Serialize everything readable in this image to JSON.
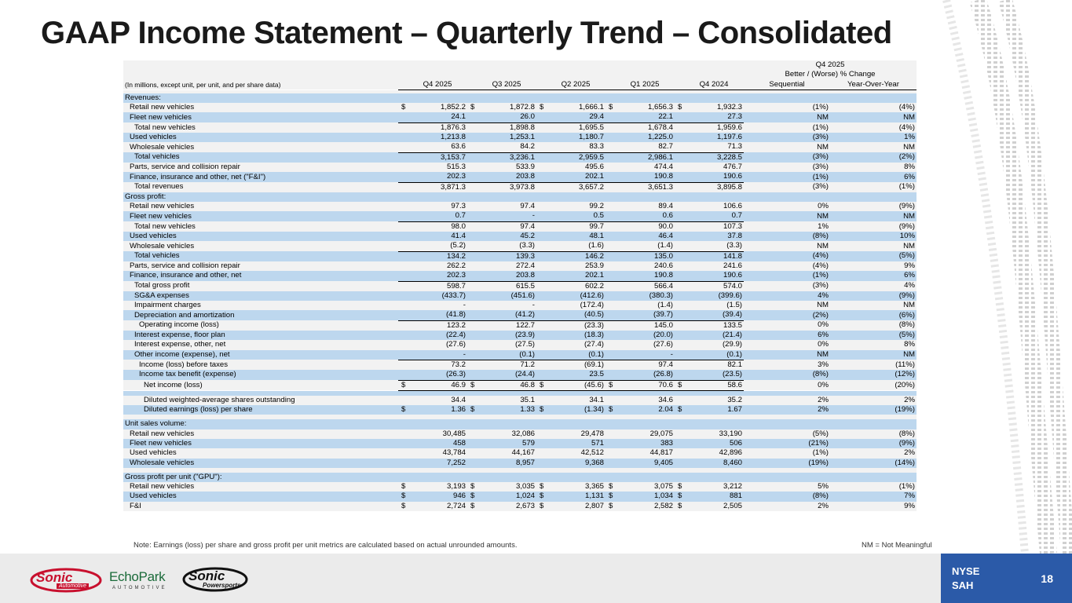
{
  "title": "GAAP Income Statement – Quarterly Trend – Consolidated",
  "header": {
    "note": "(In millions, except unit, per unit, and per share data)",
    "periods": [
      "Q4 2025",
      "Q3 2025",
      "Q2 2025",
      "Q1 2025",
      "Q4 2024"
    ],
    "change_group_1": "Q4 2025",
    "change_group_2": "Better / (Worse) % Change",
    "change_cols": [
      "Sequential",
      "Year-Over-Year"
    ]
  },
  "rows": [
    {
      "label": "Revenues:",
      "type": "section",
      "shade": true,
      "indent": 0
    },
    {
      "label": "Retail new vehicles",
      "d": true,
      "v": [
        "1,852.2",
        "1,872.8",
        "1,666.1",
        "1,656.3",
        "1,932.3"
      ],
      "c": [
        "(1%)",
        "(4%)"
      ],
      "indent": 1
    },
    {
      "label": "Fleet new vehicles",
      "v": [
        "24.1",
        "26.0",
        "29.4",
        "22.1",
        "27.3"
      ],
      "c": [
        "NM",
        "NM"
      ],
      "shade": true,
      "ul": true,
      "indent": 1
    },
    {
      "label": "Total new vehicles",
      "v": [
        "1,876.3",
        "1,898.8",
        "1,695.5",
        "1,678.4",
        "1,959.6"
      ],
      "c": [
        "(1%)",
        "(4%)"
      ],
      "indent": 2
    },
    {
      "label": "Used vehicles",
      "v": [
        "1,213.8",
        "1,253.1",
        "1,180.7",
        "1,225.0",
        "1,197.6"
      ],
      "c": [
        "(3%)",
        "1%"
      ],
      "shade": true,
      "indent": 1
    },
    {
      "label": "Wholesale vehicles",
      "v": [
        "63.6",
        "84.2",
        "83.3",
        "82.7",
        "71.3"
      ],
      "c": [
        "NM",
        "NM"
      ],
      "ul": true,
      "indent": 1
    },
    {
      "label": "Total vehicles",
      "v": [
        "3,153.7",
        "3,236.1",
        "2,959.5",
        "2,986.1",
        "3,228.5"
      ],
      "c": [
        "(3%)",
        "(2%)"
      ],
      "shade": true,
      "indent": 2
    },
    {
      "label": "Parts, service and collision repair",
      "v": [
        "515.3",
        "533.9",
        "495.6",
        "474.4",
        "476.7"
      ],
      "c": [
        "(3%)",
        "8%"
      ],
      "indent": 1
    },
    {
      "label": "Finance, insurance and other, net (\"F&I\")",
      "v": [
        "202.3",
        "203.8",
        "202.1",
        "190.8",
        "190.6"
      ],
      "c": [
        "(1%)",
        "6%"
      ],
      "shade": true,
      "ul": true,
      "indent": 1
    },
    {
      "label": "Total revenues",
      "v": [
        "3,871.3",
        "3,973.8",
        "3,657.2",
        "3,651.3",
        "3,895.8"
      ],
      "c": [
        "(3%)",
        "(1%)"
      ],
      "indent": 2
    },
    {
      "label": "Gross profit:",
      "type": "section",
      "shade": true,
      "indent": 0
    },
    {
      "label": "Retail new vehicles",
      "v": [
        "97.3",
        "97.4",
        "99.2",
        "89.4",
        "106.6"
      ],
      "c": [
        "0%",
        "(9%)"
      ],
      "indent": 1
    },
    {
      "label": "Fleet new vehicles",
      "v": [
        "0.7",
        "-",
        "0.5",
        "0.6",
        "0.7"
      ],
      "c": [
        "NM",
        "NM"
      ],
      "shade": true,
      "ul": true,
      "indent": 1
    },
    {
      "label": "Total new vehicles",
      "v": [
        "98.0",
        "97.4",
        "99.7",
        "90.0",
        "107.3"
      ],
      "c": [
        "1%",
        "(9%)"
      ],
      "indent": 2
    },
    {
      "label": "Used vehicles",
      "v": [
        "41.4",
        "45.2",
        "48.1",
        "46.4",
        "37.8"
      ],
      "c": [
        "(8%)",
        "10%"
      ],
      "shade": true,
      "indent": 1
    },
    {
      "label": "Wholesale vehicles",
      "v": [
        "(5.2)",
        "(3.3)",
        "(1.6)",
        "(1.4)",
        "(3.3)"
      ],
      "c": [
        "NM",
        "NM"
      ],
      "ul": true,
      "indent": 1
    },
    {
      "label": "Total vehicles",
      "v": [
        "134.2",
        "139.3",
        "146.2",
        "135.0",
        "141.8"
      ],
      "c": [
        "(4%)",
        "(5%)"
      ],
      "shade": true,
      "indent": 2
    },
    {
      "label": "Parts, service and collision repair",
      "v": [
        "262.2",
        "272.4",
        "253.9",
        "240.6",
        "241.6"
      ],
      "c": [
        "(4%)",
        "9%"
      ],
      "indent": 1
    },
    {
      "label": "Finance, insurance and other, net",
      "v": [
        "202.3",
        "203.8",
        "202.1",
        "190.8",
        "190.6"
      ],
      "c": [
        "(1%)",
        "6%"
      ],
      "shade": true,
      "ul": true,
      "indent": 1
    },
    {
      "label": "Total gross profit",
      "v": [
        "598.7",
        "615.5",
        "602.2",
        "566.4",
        "574.0"
      ],
      "c": [
        "(3%)",
        "4%"
      ],
      "indent": 2
    },
    {
      "label": "SG&A expenses",
      "v": [
        "(433.7)",
        "(451.6)",
        "(412.6)",
        "(380.3)",
        "(399.6)"
      ],
      "c": [
        "4%",
        "(9%)"
      ],
      "shade": true,
      "indent": 2
    },
    {
      "label": "Impairment charges",
      "v": [
        "-",
        "-",
        "(172.4)",
        "(1.4)",
        "(1.5)"
      ],
      "c": [
        "NM",
        "NM"
      ],
      "indent": 2
    },
    {
      "label": "Depreciation and amortization",
      "v": [
        "(41.8)",
        "(41.2)",
        "(40.5)",
        "(39.7)",
        "(39.4)"
      ],
      "c": [
        "(2%)",
        "(6%)"
      ],
      "shade": true,
      "ul": true,
      "indent": 2
    },
    {
      "label": "Operating income (loss)",
      "v": [
        "123.2",
        "122.7",
        "(23.3)",
        "145.0",
        "133.5"
      ],
      "c": [
        "0%",
        "(8%)"
      ],
      "indent": 3
    },
    {
      "label": "Interest expense, floor plan",
      "v": [
        "(22.4)",
        "(23.9)",
        "(18.3)",
        "(20.0)",
        "(21.4)"
      ],
      "c": [
        "6%",
        "(5%)"
      ],
      "shade": true,
      "indent": 2
    },
    {
      "label": "Interest expense, other, net",
      "v": [
        "(27.6)",
        "(27.5)",
        "(27.4)",
        "(27.6)",
        "(29.9)"
      ],
      "c": [
        "0%",
        "8%"
      ],
      "indent": 2
    },
    {
      "label": "Other income (expense), net",
      "v": [
        "-",
        "(0.1)",
        "(0.1)",
        "-",
        "(0.1)"
      ],
      "c": [
        "NM",
        "NM"
      ],
      "shade": true,
      "ul": true,
      "indent": 2
    },
    {
      "label": "Income (loss) before taxes",
      "v": [
        "73.2",
        "71.2",
        "(69.1)",
        "97.4",
        "82.1"
      ],
      "c": [
        "3%",
        "(11%)"
      ],
      "indent": 3
    },
    {
      "label": "Income tax benefit (expense)",
      "v": [
        "(26.3)",
        "(24.4)",
        "23.5",
        "(26.8)",
        "(23.5)"
      ],
      "c": [
        "(8%)",
        "(12%)"
      ],
      "shade": true,
      "ul": true,
      "indent": 3
    },
    {
      "label": "Net income (loss)",
      "d": true,
      "v": [
        "46.9",
        "46.8",
        "(45.6)",
        "70.6",
        "58.6"
      ],
      "c": [
        "0%",
        "(20%)"
      ],
      "ul": true,
      "indent": 4
    },
    {
      "type": "spacer",
      "shade": true
    },
    {
      "label": "Diluted weighted-average shares outstanding",
      "v": [
        "34.4",
        "35.1",
        "34.1",
        "34.6",
        "35.2"
      ],
      "c": [
        "2%",
        "2%"
      ],
      "indent": 4
    },
    {
      "label": "Diluted earnings (loss) per share",
      "d": true,
      "v": [
        "1.36",
        "1.33",
        "(1.34)",
        "2.04",
        "1.67"
      ],
      "c": [
        "2%",
        "(19%)"
      ],
      "shade": true,
      "indent": 4
    },
    {
      "type": "spacer"
    },
    {
      "label": "Unit sales volume:",
      "type": "section",
      "shade": true,
      "indent": 0
    },
    {
      "label": "Retail new vehicles",
      "v": [
        "30,485",
        "32,086",
        "29,478",
        "29,075",
        "33,190"
      ],
      "c": [
        "(5%)",
        "(8%)"
      ],
      "indent": 1
    },
    {
      "label": "Fleet new vehicles",
      "v": [
        "458",
        "579",
        "571",
        "383",
        "506"
      ],
      "c": [
        "(21%)",
        "(9%)"
      ],
      "shade": true,
      "indent": 1
    },
    {
      "label": "Used vehicles",
      "v": [
        "43,784",
        "44,167",
        "42,512",
        "44,817",
        "42,896"
      ],
      "c": [
        "(1%)",
        "2%"
      ],
      "indent": 1
    },
    {
      "label": "Wholesale vehicles",
      "v": [
        "7,252",
        "8,957",
        "9,368",
        "9,405",
        "8,460"
      ],
      "c": [
        "(19%)",
        "(14%)"
      ],
      "shade": true,
      "indent": 1
    },
    {
      "type": "spacer"
    },
    {
      "label": "Gross profit per unit (\"GPU\"):",
      "type": "section",
      "shade": true,
      "indent": 0
    },
    {
      "label": "Retail new vehicles",
      "d": true,
      "v": [
        "3,193",
        "3,035",
        "3,365",
        "3,075",
        "3,212"
      ],
      "c": [
        "5%",
        "(1%)"
      ],
      "indent": 1
    },
    {
      "label": "Used vehicles",
      "d": true,
      "v": [
        "946",
        "1,024",
        "1,131",
        "1,034",
        "881"
      ],
      "c": [
        "(8%)",
        "7%"
      ],
      "shade": true,
      "indent": 1
    },
    {
      "label": "F&I",
      "d": true,
      "v": [
        "2,724",
        "2,673",
        "2,807",
        "2,582",
        "2,505"
      ],
      "c": [
        "2%",
        "9%"
      ],
      "indent": 1
    }
  ],
  "dollar": "$",
  "footnote": "Note: Earnings (loss) per share and gross profit per unit metrics are calculated based on actual unrounded amounts.",
  "nm_note": "NM = Not Meaningful",
  "logos": {
    "sonic_automotive": [
      "Sonic",
      "Automotive"
    ],
    "echopark": [
      "EchoPark",
      "AUTOMOTIVE"
    ],
    "sonic_powersports": [
      "Sonic",
      "Powersports"
    ]
  },
  "ticker": [
    "NYSE",
    "SAH"
  ],
  "page_number": "18",
  "colors": {
    "row_shade": "#bdd7ee",
    "band": "#f2f2f2",
    "nyse_bg": "#2b5aa8",
    "sonic_red": "#c8102e",
    "echo_green": "#1b6b3a"
  }
}
